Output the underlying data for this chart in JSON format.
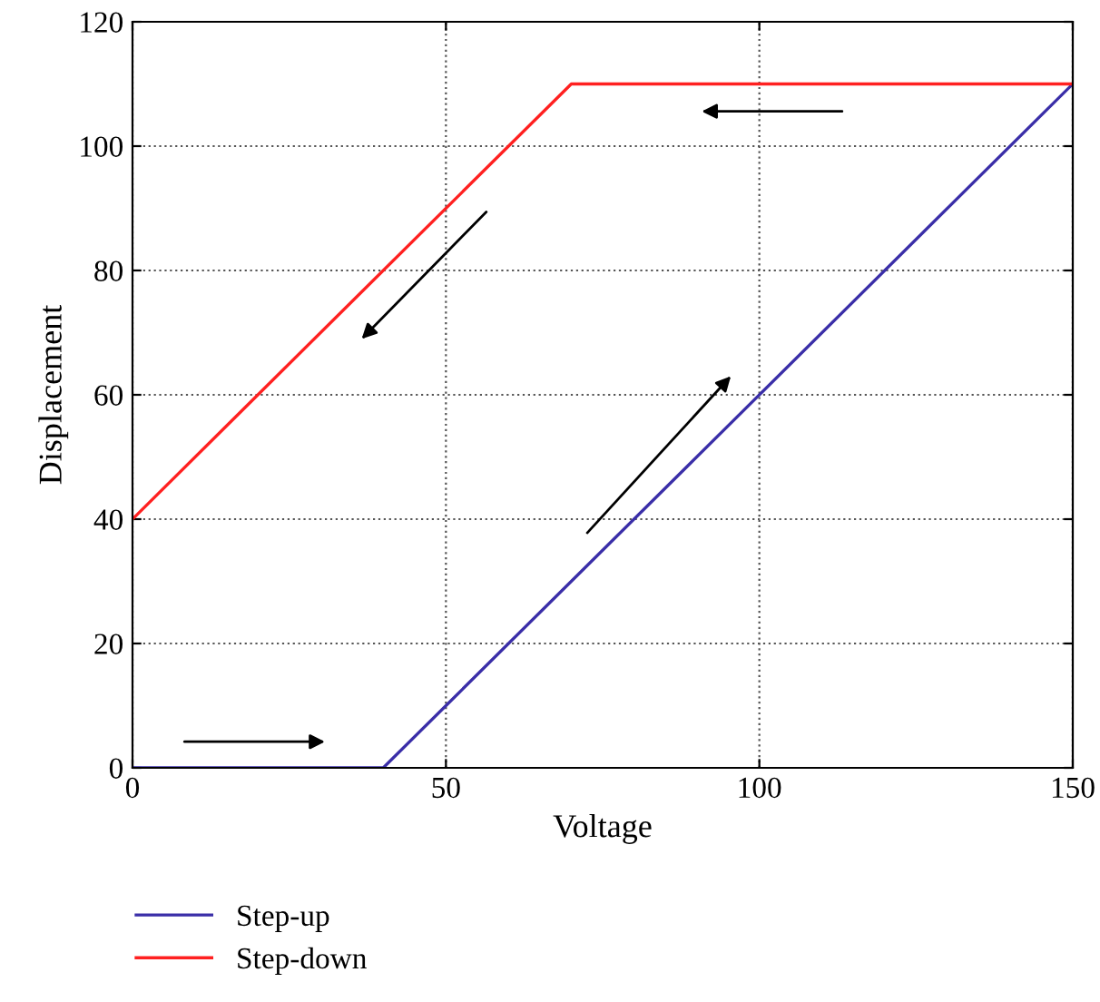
{
  "chart_data": {
    "type": "line",
    "xlabel": "Voltage",
    "ylabel": "Displacement",
    "xlim": [
      0,
      150
    ],
    "xticks": [
      0,
      50,
      100,
      150
    ],
    "ylim": [
      0,
      120
    ],
    "yticks": [
      0,
      20,
      40,
      60,
      80,
      100,
      120
    ],
    "grid": true,
    "legend": "bottom left",
    "line_style": "solid",
    "series": [
      {
        "name": "Step-up",
        "color": "#3a2ea8",
        "x": [
          0,
          40,
          150
        ],
        "values": [
          0,
          0,
          110
        ]
      },
      {
        "name": "Step-down",
        "color": "#ff2020",
        "x": [
          0,
          70,
          150
        ],
        "values": [
          40,
          110,
          110
        ]
      }
    ]
  }
}
